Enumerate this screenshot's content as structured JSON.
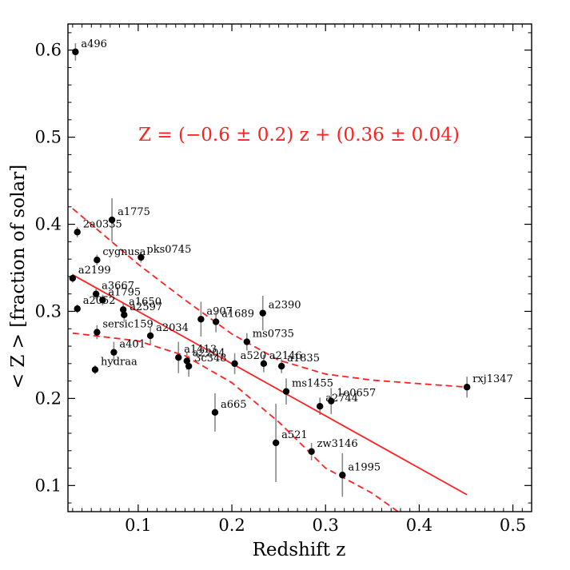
{
  "chart_data": {
    "type": "scatter",
    "title": "",
    "xlabel": "Redshift z",
    "ylabel": "< Z > [fraction of solar]",
    "xlim": [
      0.025,
      0.52
    ],
    "ylim": [
      0.07,
      0.63
    ],
    "grid": false,
    "x_ticks": [
      0.1,
      0.2,
      0.3,
      0.4,
      0.5
    ],
    "x_tick_labels": [
      "0.1",
      "0.2",
      "0.3",
      "0.4",
      "0.5"
    ],
    "y_ticks": [
      0.1,
      0.2,
      0.3,
      0.4,
      0.5,
      0.6
    ],
    "y_tick_labels": [
      "0.1",
      "0.2",
      "0.3",
      "0.4",
      "0.5",
      "0.6"
    ],
    "annotation": "Z = (−0.6 ± 0.2) z + (0.36 ± 0.04)",
    "annotation_color": "#ff2020",
    "fit_color": "#ff2020",
    "point_color": "#000000",
    "errorbar_color": "#888888",
    "points": [
      {
        "name": "a496",
        "z": 0.033,
        "y": 0.598,
        "err": 0.01
      },
      {
        "name": "a1775",
        "z": 0.072,
        "y": 0.405,
        "err": 0.025
      },
      {
        "name": "2a0335",
        "z": 0.035,
        "y": 0.391,
        "err": 0.006
      },
      {
        "name": "cygnusa",
        "z": 0.056,
        "y": 0.359,
        "err": 0.006
      },
      {
        "name": "pks0745",
        "z": 0.103,
        "y": 0.362,
        "err": 0.006
      },
      {
        "name": "a2199",
        "z": 0.03,
        "y": 0.338,
        "err": 0.005
      },
      {
        "name": "a3667",
        "z": 0.055,
        "y": 0.32,
        "err": 0.006
      },
      {
        "name": "a1795",
        "z": 0.062,
        "y": 0.313,
        "err": 0.006
      },
      {
        "name": "a2052",
        "z": 0.035,
        "y": 0.303,
        "err": 0.005
      },
      {
        "name": "a1650",
        "z": 0.084,
        "y": 0.302,
        "err": 0.008
      },
      {
        "name": "a2597",
        "z": 0.085,
        "y": 0.296,
        "err": 0.008
      },
      {
        "name": "sersic159",
        "z": 0.056,
        "y": 0.276,
        "err": 0.008
      },
      {
        "name": "a2034",
        "z": 0.113,
        "y": 0.272,
        "err": 0.01
      },
      {
        "name": "a401",
        "z": 0.074,
        "y": 0.253,
        "err": 0.012
      },
      {
        "name": "hydraa",
        "z": 0.054,
        "y": 0.233,
        "err": 0.005
      },
      {
        "name": "a907",
        "z": 0.167,
        "y": 0.291,
        "err": 0.02
      },
      {
        "name": "a1689",
        "z": 0.183,
        "y": 0.288,
        "err": 0.012
      },
      {
        "name": "a2390",
        "z": 0.233,
        "y": 0.298,
        "err": 0.02
      },
      {
        "name": "ms0735",
        "z": 0.216,
        "y": 0.265,
        "err": 0.01
      },
      {
        "name": "a1413",
        "z": 0.143,
        "y": 0.247,
        "err": 0.018
      },
      {
        "name": "a2204",
        "z": 0.152,
        "y": 0.243,
        "err": 0.01
      },
      {
        "name": "3c348",
        "z": 0.154,
        "y": 0.237,
        "err": 0.012
      },
      {
        "name": "a520",
        "z": 0.203,
        "y": 0.24,
        "err": 0.012
      },
      {
        "name": "a2146",
        "z": 0.234,
        "y": 0.24,
        "err": 0.01
      },
      {
        "name": "a1835",
        "z": 0.253,
        "y": 0.237,
        "err": 0.008
      },
      {
        "name": "ms1455",
        "z": 0.258,
        "y": 0.208,
        "err": 0.015
      },
      {
        "name": "a2744",
        "z": 0.294,
        "y": 0.191,
        "err": 0.01
      },
      {
        "name": "1e0657",
        "z": 0.306,
        "y": 0.197,
        "err": 0.015
      },
      {
        "name": "rxj1347",
        "z": 0.451,
        "y": 0.213,
        "err": 0.012
      },
      {
        "name": "a665",
        "z": 0.182,
        "y": 0.184,
        "err": 0.022
      },
      {
        "name": "a521",
        "z": 0.247,
        "y": 0.149,
        "err": 0.045
      },
      {
        "name": "zw3146",
        "z": 0.285,
        "y": 0.139,
        "err": 0.01
      },
      {
        "name": "a1995",
        "z": 0.318,
        "y": 0.112,
        "err": 0.025
      }
    ],
    "fit_line": {
      "slope": -0.6,
      "intercept": 0.36,
      "x": [
        0.03,
        0.451
      ]
    },
    "upper_band": [
      [
        0.03,
        0.418
      ],
      [
        0.1,
        0.354
      ],
      [
        0.15,
        0.313
      ],
      [
        0.2,
        0.274
      ],
      [
        0.25,
        0.244
      ],
      [
        0.3,
        0.228
      ],
      [
        0.35,
        0.221
      ],
      [
        0.4,
        0.217
      ],
      [
        0.451,
        0.213
      ]
    ],
    "lower_band": [
      [
        0.03,
        0.275
      ],
      [
        0.1,
        0.266
      ],
      [
        0.15,
        0.249
      ],
      [
        0.2,
        0.218
      ],
      [
        0.25,
        0.173
      ],
      [
        0.3,
        0.12
      ],
      [
        0.35,
        0.091
      ],
      [
        0.38,
        0.068
      ]
    ]
  }
}
